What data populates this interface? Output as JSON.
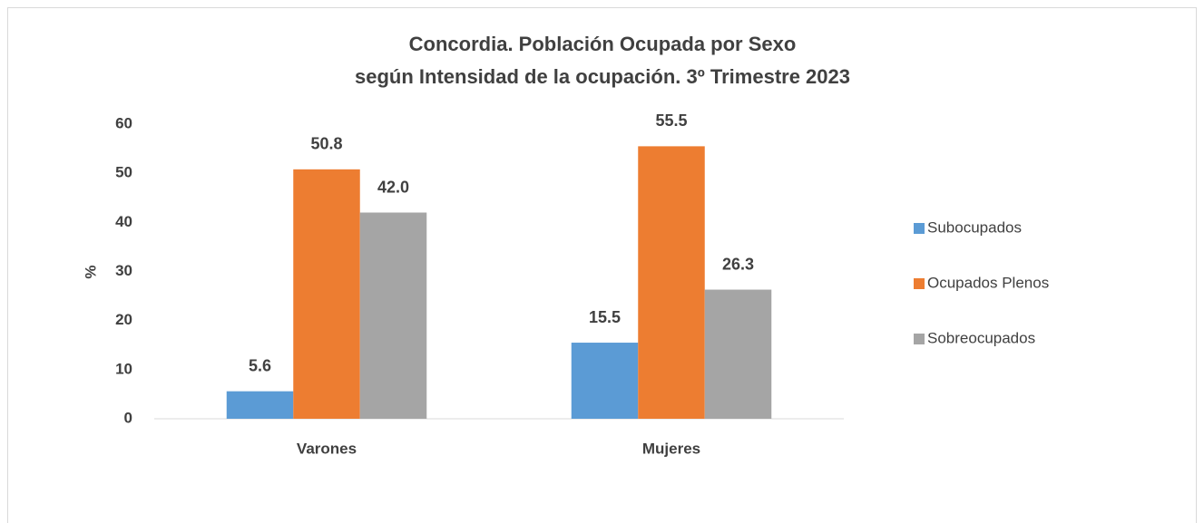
{
  "chart_data": {
    "type": "bar",
    "title": [
      "Concordia. Población Ocupada por Sexo",
      "según Intensidad de la ocupación. 3º Trimestre 2023"
    ],
    "y_label": "%",
    "categories": [
      "Varones",
      "Mujeres"
    ],
    "series": [
      {
        "name": "Subocupados",
        "color": "#5b9bd5",
        "values": [
          5.6,
          15.5
        ],
        "value_labels": [
          "5.6",
          "15.5"
        ]
      },
      {
        "name": "Ocupados Plenos",
        "color": "#ed7d31",
        "values": [
          50.8,
          55.5
        ],
        "value_labels": [
          "50.8",
          "55.5"
        ]
      },
      {
        "name": "Sobreocupados",
        "color": "#a5a5a5",
        "values": [
          42.0,
          26.3
        ],
        "value_labels": [
          "42.0",
          "26.3"
        ]
      }
    ],
    "ylim": [
      0,
      60
    ],
    "yticks": [
      0,
      10,
      20,
      30,
      40,
      50,
      60
    ],
    "grid": false,
    "legend": "right"
  }
}
